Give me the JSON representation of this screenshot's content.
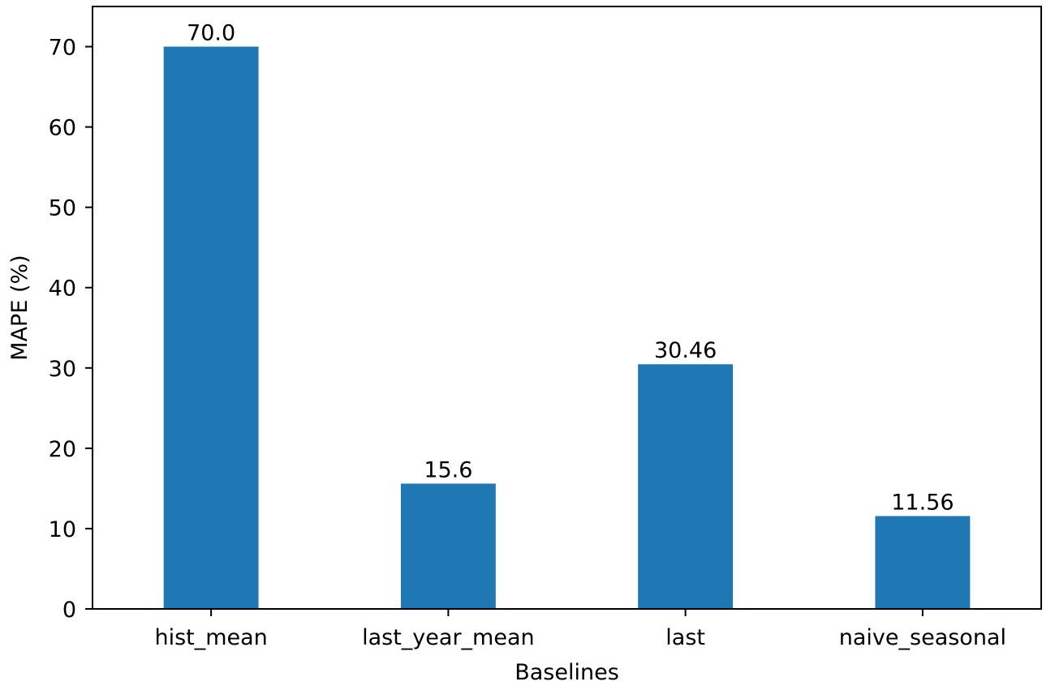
{
  "chart_data": {
    "type": "bar",
    "categories": [
      "hist_mean",
      "last_year_mean",
      "last",
      "naive_seasonal"
    ],
    "values": [
      70.0,
      15.6,
      30.46,
      11.56
    ],
    "value_labels": [
      "70.0",
      "15.6",
      "30.46",
      "11.56"
    ],
    "title": "",
    "xlabel": "Baselines",
    "ylabel": "MAPE (%)",
    "ylim": [
      0,
      75
    ],
    "yticks": [
      0,
      10,
      20,
      30,
      40,
      50,
      60,
      70
    ],
    "grid": false,
    "legend": "none",
    "bar_color": "#1f77b4"
  }
}
